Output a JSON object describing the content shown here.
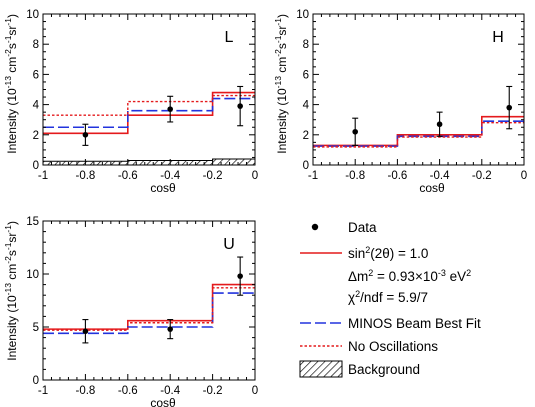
{
  "colors": {
    "data": "#000000",
    "oscillation": "#e41a1c",
    "best_fit": "#2233dd",
    "no_oscillation": "#e41a1c",
    "background": "#000000",
    "frame": "#000000"
  },
  "axis_text": {
    "ylabel_main": "Intensity (10",
    "ylabel_exp1": "-13",
    "ylabel_unit": " cm",
    "ylabel_exp2": "-2",
    "ylabel_s": "s",
    "ylabel_exp3": "-1",
    "ylabel_sr": "sr",
    "ylabel_exp4": "-1",
    "ylabel_close": ")",
    "xlabel": "cosθ"
  },
  "legend": {
    "data": "Data",
    "osc_prefix": "sin",
    "osc_sup": "2",
    "osc_suffix": "(2θ) = 1.0",
    "dm_prefix": "Δm",
    "dm_sup": "2",
    "dm_mid": " = 0.93×10",
    "dm_sup2": "-3",
    "dm_suffix": " eV",
    "dm_sup3": "2",
    "chi_prefix": "χ",
    "chi_sup": "2",
    "chi_suffix": "/ndf = 5.9/7",
    "best_fit": "MINOS Beam Best Fit",
    "no_osc": "No Oscillations",
    "background": "Background"
  },
  "chart_data": [
    {
      "type": "line",
      "panel": "L",
      "xlabel": "cosθ",
      "xlim": [
        -1,
        0
      ],
      "ylim": [
        0,
        10
      ],
      "x_ticks": [
        "-1",
        "-0.8",
        "-0.6",
        "-0.4",
        "-0.2",
        "0"
      ],
      "y_ticks": [
        "0",
        "2",
        "4",
        "6",
        "8",
        "10"
      ],
      "bin_edges": [
        -1,
        -0.6,
        -0.2,
        0
      ],
      "series": [
        {
          "name": "sin²(2θ) = 1.0",
          "style": "histogram",
          "values": [
            2.1,
            3.3,
            4.8
          ]
        },
        {
          "name": "MINOS Beam Best Fit",
          "style": "histogram",
          "values": [
            2.5,
            3.6,
            4.4
          ]
        },
        {
          "name": "No Oscillations",
          "style": "histogram",
          "values": [
            3.3,
            4.2,
            4.6
          ]
        },
        {
          "name": "Background",
          "style": "hatched",
          "values": [
            0.25,
            0.3,
            0.4
          ]
        }
      ],
      "points": {
        "name": "Data",
        "x": [
          -0.8,
          -0.4,
          -0.07
        ],
        "y": [
          2.0,
          3.7,
          3.9
        ],
        "err": [
          0.7,
          0.85,
          1.3
        ]
      }
    },
    {
      "type": "line",
      "panel": "H",
      "xlabel": "cosθ",
      "xlim": [
        -1,
        0
      ],
      "ylim": [
        0,
        10
      ],
      "x_ticks": [
        "-1",
        "-0.8",
        "-0.6",
        "-0.4",
        "-0.2",
        "0"
      ],
      "y_ticks": [
        "0",
        "2",
        "4",
        "6",
        "8",
        "10"
      ],
      "bin_edges": [
        -1,
        -0.6,
        -0.2,
        0
      ],
      "series": [
        {
          "name": "sin²(2θ) = 1.0",
          "style": "histogram",
          "values": [
            1.3,
            2.0,
            3.2
          ]
        },
        {
          "name": "MINOS Beam Best Fit",
          "style": "histogram",
          "values": [
            1.25,
            1.9,
            2.9
          ]
        },
        {
          "name": "No Oscillations",
          "style": "histogram",
          "values": [
            1.2,
            1.85,
            2.8
          ]
        }
      ],
      "points": {
        "name": "Data",
        "x": [
          -0.8,
          -0.4,
          -0.07
        ],
        "y": [
          2.2,
          2.7,
          3.8
        ],
        "err": [
          0.9,
          0.8,
          1.4
        ]
      }
    },
    {
      "type": "line",
      "panel": "U",
      "xlabel": "cosθ",
      "xlim": [
        -1,
        0
      ],
      "ylim": [
        0,
        15
      ],
      "x_ticks": [
        "-1",
        "-0.8",
        "-0.6",
        "-0.4",
        "-0.2",
        "0"
      ],
      "y_ticks": [
        "0",
        "5",
        "10",
        "15"
      ],
      "bin_edges": [
        -1,
        -0.6,
        -0.2,
        0
      ],
      "series": [
        {
          "name": "sin²(2θ) = 1.0",
          "style": "histogram",
          "values": [
            4.8,
            5.6,
            9.0
          ]
        },
        {
          "name": "MINOS Beam Best Fit",
          "style": "histogram",
          "values": [
            4.4,
            5.0,
            8.2
          ]
        },
        {
          "name": "No Oscillations",
          "style": "histogram",
          "values": [
            4.7,
            5.4,
            8.7
          ]
        }
      ],
      "points": {
        "name": "Data",
        "x": [
          -0.8,
          -0.4,
          -0.07
        ],
        "y": [
          4.6,
          4.8,
          9.8
        ],
        "err": [
          1.1,
          0.9,
          1.8
        ]
      }
    }
  ]
}
